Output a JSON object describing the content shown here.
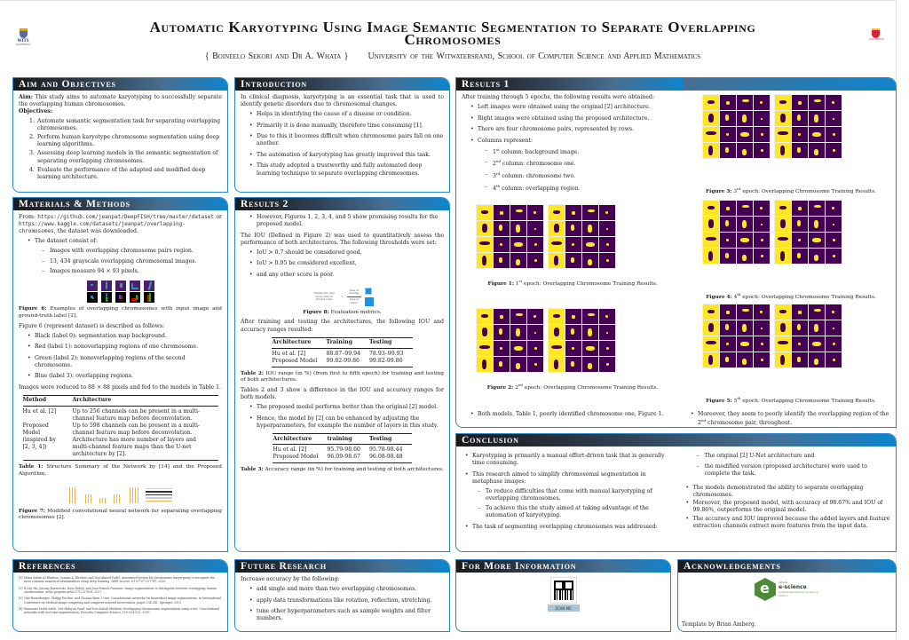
{
  "header": {
    "title_line1": "Automatic Karyotyping Using Image Semantic Segmentation to Separate Overlapping",
    "title_line2": "Chromosomes",
    "authors": "{ Boineelo Sekori and Dr A. Whata }",
    "affiliation": "University of the Witwatersrand, School of Computer Science and Applied Mathematics",
    "left_logo": {
      "text": "WITS",
      "sub": "UNIVERSITY"
    },
    "right_logo": {
      "sub": "UNIVERSITY"
    }
  },
  "aim": {
    "title": "Aim and Objectives",
    "aim_label": "Aim:",
    "aim_text": "This study aims to automate karyotyping to successfully separate the overlapping human chromosomes.",
    "objectives_label": "Objectives:",
    "objectives": [
      {
        "n": "1.",
        "text": "Automate semantic segmentation task for separating overlapping chromosomes."
      },
      {
        "n": "2.",
        "text": "Perform human karyotype chromosome segmentation using deep learning algorithms."
      },
      {
        "n": "3.",
        "text": "Assessing deep learning models in the semantic segmentation of separating overlapping chromosomes."
      },
      {
        "n": "4.",
        "text": "Evaluate the performance of the adapted and modified deep learning architecture."
      }
    ]
  },
  "methods": {
    "title": "Materials & Methods",
    "from_label": "From:",
    "url1": "https://github.com/jeanpat/DeepFISH/tree/master/dataset",
    "or": "or",
    "url2": "https://www.kaggle.com/datasets/jeanpat/overlapping-chromosomes",
    "downloaded": ", the dataset was downloaded.",
    "dataset_intro": "The dataset consist of:",
    "dataset_items": [
      "Images with overlapping chromosome pairs region.",
      "13, 434 grayscale overlapping chromosomal images.",
      "Images measure 94 × 93 pixels."
    ],
    "fig6_label": "Figure 6:",
    "fig6_caption": "Examples of overlapping chromosomes with input image and ground-truth label [2].",
    "fig6_desc": "Figure 6 (represent dataset) is described as follows:",
    "labels": [
      "Black (label 0): segmentation map background.",
      "Red (label 1): nonoverlapping regions of one chromosome.",
      "Green (label 2): nonoverlapping regions of the second chromosome.",
      "Blue (label 3): overlapping regions."
    ],
    "reduced": "Images were reduced to 88 × 88 pixels and fed to the models in Table 1.",
    "table1": {
      "headers": [
        "Method",
        "Architecture"
      ],
      "rows": [
        [
          "Hu et al. [2]",
          "Up to 256 channels can be present in a multi-channel feature map before deconvolution."
        ],
        [
          "Proposed Model (inspired by [2, 3, 4])",
          "Up to 598 channels can be present in a multi-channel feature map before deconvolution. Architecture has more number of layers and multi-channel feature maps than the U-net architecture by [2]."
        ]
      ]
    },
    "table1_label": "Table 1:",
    "table1_caption": "Structure Summary of the Network by [14] and the Proposed Algorithm.",
    "fig7_label": "Figure 7:",
    "fig7_caption": "Modified convolutional neural network for separating overlapping chromosomes [2]."
  },
  "intro": {
    "title": "Introduction",
    "text": "In clinical diagnosis, karyotyping is an essential task that is used to identify genetic disorders due to chromosomal changes.",
    "bullets": [
      "Helps in identifying the cause of a disease or condition.",
      "Primarily it is done manually, therefore time consuming [1].",
      "Due to this it becomes difficult when chromosome pairs fall on one another.",
      "The automation of karyotyping has greatly improved this task.",
      "This study adopted a trustworthy and fully automated deep learning technique to separate overlapping chromosomes."
    ]
  },
  "results2": {
    "title": "Results 2",
    "bullet0": "However, Figures 1, 2, 3, 4, and 5 show promising results for the proposed model.",
    "iou_text": "The IOU (Defined in Figure 2) was used to quantitatively assess the performance of both architectures. The following thresholds were set:",
    "thresholds": [
      "IoU > 0.7 should be considered good,",
      "IoU > 0.95 be considered excellent,",
      "and any other score is poor."
    ],
    "fig8_formula_left": "Intersection over Union (IOU) or Jaccard Index",
    "fig8_top": "Area of Overlap",
    "fig8_bottom": "Area of Union",
    "fig8_label": "Figure 8:",
    "fig8_caption": "Evaluation metrics.",
    "after_text": "After training and testing the architectures, the following IOU and accuracy ranges resulted:",
    "table2": {
      "headers": [
        "Architecture",
        "Training",
        "Testing"
      ],
      "rows": [
        [
          "Hu et al. [2]",
          "88.87–99.94",
          "78.93–99.93"
        ],
        [
          "Proposed Model",
          "99.82-99.86",
          "99.82-99.86"
        ]
      ]
    },
    "table2_label": "Table 2:",
    "table2_caption": "IOU range (in %) (from first to fifth epoch) for training and testing of both architectures.",
    "diff_text": "Tables 2 and 3 show a difference in the IOU and accuracy ranges for both models.",
    "diff_bullets": [
      "The proposed model performs better than the original [2] model.",
      "Hence, the model by [2] can be enhanced by adjusting the hyperparameters, for example the number of layers in this study."
    ],
    "table3": {
      "headers": [
        "Architecture",
        "training",
        "Testing"
      ],
      "rows": [
        [
          "Hu et al. [2]",
          "95.79-98.60",
          "95.78-98.44"
        ],
        [
          "Proposed Model",
          "96.09-98.67",
          "96.08-98.48"
        ]
      ]
    },
    "table3_label": "Table 3:",
    "table3_caption": "Accuracy range (in %) for training and testing of both architectures."
  },
  "results1": {
    "title": "Results 1",
    "intro": "After training through 5 epochs, the following results were obtained:",
    "bullets": [
      "Left images were obtained using the original [2] architecture.",
      "Right images were obtained using the proposed architecture.",
      "There are four chromosome pairs, represented by rows.",
      "Columns represent:"
    ],
    "columns": [
      {
        "ord": "1",
        "sup": "st",
        "text": "column: background image."
      },
      {
        "ord": "2",
        "sup": "nd",
        "text": "column: chromosome one."
      },
      {
        "ord": "3",
        "sup": "rd",
        "text": "column: chromosome two."
      },
      {
        "ord": "4",
        "sup": "th",
        "text": "column: overlapping region."
      }
    ],
    "figures": [
      {
        "label": "Figure 1:",
        "ord": "1",
        "sup": "st",
        "caption": "epoch: Overlapping Chromosome Training Results."
      },
      {
        "label": "Figure 2:",
        "ord": "2",
        "sup": "nd",
        "caption": "epoch: Overlapping Chromosome Training Results."
      },
      {
        "label": "Figure 3:",
        "ord": "3",
        "sup": "rd",
        "caption": "epoch: Overlapping Chromosome Training Results."
      },
      {
        "label": "Figure 4:",
        "ord": "4",
        "sup": "th",
        "caption": "epoch: Overlapping Chromosome Training Results."
      },
      {
        "label": "Figure 5:",
        "ord": "5",
        "sup": "th",
        "caption": "epoch: Overlapping Chromosome Training Results."
      }
    ],
    "note_left": "Both models, Table 1, poorly identified chromosome one, Figure 1.",
    "note_right_a": "Moreover, they seem to poorly identify the overlapping region of the 2",
    "note_right_sup": "nd",
    "note_right_b": " chromosome pair, throughout."
  },
  "conclusion": {
    "title": "Conclusion",
    "b1": "Karyotyping is primarily a manual effort-driven task that is generally time consuming.",
    "b2": "This research aimed to simplify chromosomal segmentation in metaphase images:",
    "b2_sub": [
      "To reduce difficulties that come with manual karyotyping of overlapping chromosomes.",
      "To achieve this the study aimed at taking advantage of the automation of karyotyping."
    ],
    "b3": "The task of segmenting overlapping chromosomes was addressed:",
    "b3_sub": [
      "The original [2] U-Net architecture and",
      "the modified version (proposed architecture) were used to complete the task."
    ],
    "right_bullets": [
      "The models demonstrated the ability to separate overlapping chromosomes.",
      "Moreover, the proposed model, with accuracy of 98.67% and IOU of 99.86%, outperforms the original model.",
      "The accuracy and IOU improved because the added layers and feature extraction channels extract more features from the input data."
    ]
  },
  "references": {
    "title": "References",
    "items": [
      {
        "k": "[1]",
        "text": "Mona Salem Al-Kharraz, Lamiaa A. Elrefaei, and Mai Ahmed Fadel. Automated system for chromosome karyotyping to recognize the most common numerical abnormalities using deep learning. IEEE Access, 8:157727-157747, 2020."
      },
      {
        "k": "[2]",
        "text": "R Lily Hu, Jeremy Karnowski, Ross Fadely, and Jean-Patrick Pommier. Image segmentation to distinguish between overlapping human chromosomes. arXiv preprint arXiv:1712.07639, 2017."
      },
      {
        "k": "[3]",
        "text": "Olaf Ronneberger, Philipp Fischer, and Thomas Brox. U-net: Convolutional networks for biomedical image segmentation. In International Conference on Medical image computing and computer-assisted intervention, pages 234-241. Springer, 2015."
      },
      {
        "k": "[4]",
        "text": "Siamsiani Mohd Saleh, Nor Hidayah Saad, and Nor Aishah Muhibin. Overlapping chromosome segmentation using u-net: Convolutional networks with test time augmentation. Procedia Computer Science, 159:524-533, 2019."
      }
    ]
  },
  "future": {
    "title": "Future Research",
    "intro": "Increase accuracy by the following:",
    "bullets": [
      "add single and more than two overlapping chromosomes.",
      "apply data transformations like rotation, reflection, stretching.",
      "tune other hyperparameters such as sample weights and filter numbers."
    ]
  },
  "more_info": {
    "title": "For More Information",
    "qr_label": "SCAN ME"
  },
  "ack": {
    "title": "Acknowledgements",
    "logo_small": "national",
    "logo_name": "e-science",
    "logo_tag": "postgraduate teaching and training platform",
    "template": "Template by Brian Amberg."
  },
  "colors": {
    "panel_border": "#2b87c8",
    "header_gradient_start": "#1a1a1a",
    "header_gradient_end": "#0e84cc",
    "viridis_dark": "#440154",
    "viridis_yellow": "#fde725"
  }
}
